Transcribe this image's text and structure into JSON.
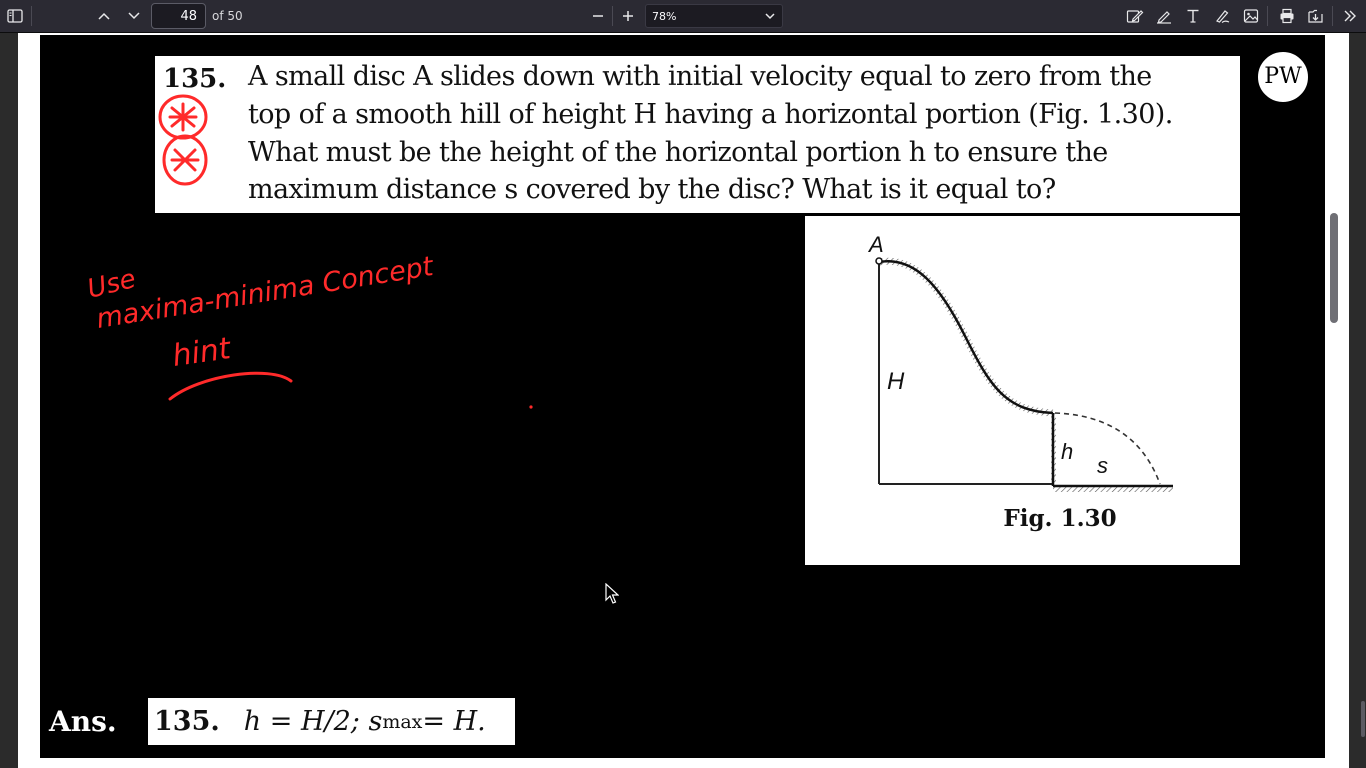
{
  "toolbar": {
    "page_number": "48",
    "page_count": "of 50",
    "zoom_value": "78%",
    "icons": [
      "sidebar-toggle-icon",
      "chevron-up-icon",
      "chevron-down-icon",
      "minus-icon",
      "plus-icon",
      "chevron-down-icon",
      "highlight-icon",
      "draw-icon",
      "text-icon",
      "signature-icon",
      "image-icon",
      "print-icon",
      "save-icon",
      "overflow-icon"
    ]
  },
  "question": {
    "number": "135.",
    "lines": [
      "A small disc A slides down with initial velocity equal to zero from the",
      "top of a smooth hill of height H having a horizontal portion (Fig. 1.30).",
      "What must be the height of the horizontal portion h to ensure the",
      "maximum distance s covered by the disc? What is it equal to?"
    ]
  },
  "logo": {
    "text": "PW"
  },
  "figure": {
    "label_a": "A",
    "label_h_big": "H",
    "label_h_small": "h",
    "label_s": "s",
    "caption": "Fig. 1.30"
  },
  "handwriting": {
    "line1": "Use",
    "line2": "maxima-minima Concept",
    "line3": "hint",
    "color": "#ff2a2a"
  },
  "answer": {
    "label": "Ans.",
    "number": "135.",
    "h_part": "h = H/2; s",
    "sub": "max",
    "s_part": " = H."
  }
}
